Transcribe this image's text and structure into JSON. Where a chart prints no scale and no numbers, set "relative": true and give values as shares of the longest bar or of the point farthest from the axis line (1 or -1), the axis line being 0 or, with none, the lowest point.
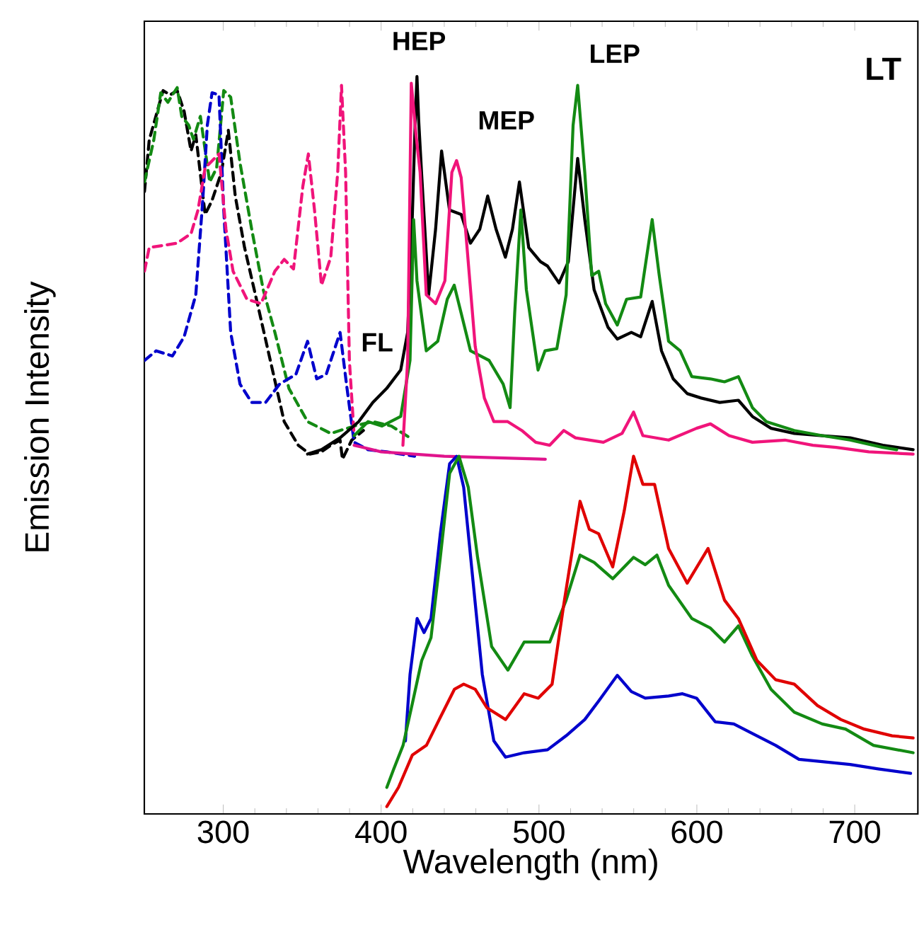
{
  "chart_data": {
    "type": "line",
    "relative": true,
    "xlabel": "Wavelength (nm)",
    "ylabel": "Emission Intensity",
    "xlim": [
      250,
      740
    ],
    "xticks": [
      300,
      400,
      500,
      600,
      700
    ],
    "grid": false,
    "marker": "none",
    "annotations": [
      "HEP",
      "MEP",
      "LEP",
      "FL",
      "LT"
    ],
    "series": [
      {
        "color": "#000000",
        "line_style": "dashed",
        "x": [
          250.1,
          253.1,
          259.0,
          261.9,
          266.3,
          270.8,
          275.2,
          279.6,
          282.6,
          288.5,
          292.9,
          298.8,
          303.2,
          307.6,
          313.5,
          322.4,
          329.8,
          338.6,
          347.5,
          354.8,
          362.2,
          368.1,
          374.0,
          375.5,
          381.4,
          388.8
        ],
        "values": [
          0.844,
          0.914,
          0.959,
          0.981,
          0.975,
          0.981,
          0.953,
          0.899,
          0.921,
          0.813,
          0.832,
          0.87,
          0.927,
          0.838,
          0.768,
          0.685,
          0.615,
          0.532,
          0.5,
          0.488,
          0.491,
          0.5,
          0.507,
          0.481,
          0.507,
          0.52
        ]
      },
      {
        "color": "#138a13",
        "line_style": "dashed",
        "x": [
          250.1,
          256.0,
          260.4,
          264.9,
          270.8,
          273.7,
          278.1,
          281.1,
          285.5,
          291.4,
          295.8,
          300.3,
          304.7,
          310.6,
          318.0,
          325.3,
          332.7,
          341.6,
          353.4,
          368.1,
          382.9,
          394.7,
          406.5,
          418.3
        ],
        "values": [
          0.857,
          0.914,
          0.978,
          0.965,
          0.985,
          0.946,
          0.934,
          0.915,
          0.946,
          0.857,
          0.876,
          0.981,
          0.972,
          0.883,
          0.793,
          0.711,
          0.653,
          0.577,
          0.532,
          0.516,
          0.526,
          0.532,
          0.526,
          0.51
        ]
      },
      {
        "color": "#0000cc",
        "line_style": "dashed",
        "x": [
          250.1,
          257.5,
          267.8,
          275.2,
          282.6,
          287.0,
          289.9,
          292.9,
          297.3,
          300.3,
          304.7,
          310.6,
          318.0,
          326.8,
          335.7,
          346.0,
          353.4,
          359.2,
          365.2,
          374.0,
          378.4,
          382.9,
          391.7,
          403.5,
          421.2
        ],
        "values": [
          0.615,
          0.628,
          0.621,
          0.647,
          0.704,
          0.832,
          0.934,
          0.978,
          0.975,
          0.819,
          0.653,
          0.583,
          0.558,
          0.558,
          0.583,
          0.596,
          0.641,
          0.59,
          0.596,
          0.653,
          0.577,
          0.504,
          0.494,
          0.491,
          0.485
        ]
      },
      {
        "color": "#f0147a",
        "line_style": "dashed",
        "x": [
          250.1,
          253.1,
          261.9,
          270.8,
          279.6,
          284.0,
          288.5,
          294.4,
          297.3,
          301.7,
          306.2,
          315.0,
          323.9,
          332.7,
          338.6,
          344.5,
          350.4,
          353.9,
          357.8,
          362.2,
          368.1,
          372.5,
          374.9,
          377.5,
          379.9,
          382.9
        ],
        "values": [
          0.736,
          0.768,
          0.771,
          0.774,
          0.787,
          0.819,
          0.876,
          0.889,
          0.895,
          0.793,
          0.736,
          0.698,
          0.692,
          0.736,
          0.752,
          0.739,
          0.851,
          0.895,
          0.819,
          0.717,
          0.755,
          0.87,
          0.988,
          0.87,
          0.615,
          0.513
        ]
      },
      {
        "color": "#e0148c",
        "line_style": "solid",
        "x": [
          382.9,
          400,
          440,
          504
        ],
        "values": [
          0.5,
          0.491,
          0.485,
          0.481
        ]
      },
      {
        "color": "#000000",
        "line_style": "solid",
        "x": [
          353.4,
          362.2,
          374.0,
          385.8,
          394.7,
          403.5,
          412.4,
          416.8,
          419.7,
          421.6,
          422.7,
          423.8,
          425.6,
          430.1,
          434.5,
          438.3,
          443.3,
          450.7,
          456.6,
          462.5,
          467.5,
          472.8,
          478.7,
          483.2,
          487.6,
          493.5,
          500.9,
          505.4,
          512.7,
          518.6,
          524.5,
          529.0,
          534.9,
          543.7,
          549.6,
          558.5,
          564.4,
          571.7,
          577.6,
          585.0,
          593.9,
          602.7,
          614.5,
          626.3,
          635.2,
          647.0,
          661.7,
          679.6,
          697.1,
          717.8,
          737.0
        ],
        "values": [
          0.488,
          0.494,
          0.51,
          0.532,
          0.558,
          0.577,
          0.602,
          0.653,
          0.806,
          0.94,
          1.0,
          0.94,
          0.87,
          0.704,
          0.793,
          0.899,
          0.819,
          0.813,
          0.774,
          0.793,
          0.838,
          0.793,
          0.755,
          0.793,
          0.857,
          0.768,
          0.749,
          0.743,
          0.72,
          0.749,
          0.889,
          0.806,
          0.711,
          0.66,
          0.644,
          0.653,
          0.647,
          0.695,
          0.628,
          0.59,
          0.57,
          0.564,
          0.558,
          0.561,
          0.539,
          0.523,
          0.516,
          0.513,
          0.51,
          0.5,
          0.494
        ]
      },
      {
        "color": "#138a13",
        "line_style": "solid",
        "x": [
          382.9,
          391.7,
          400.6,
          412.4,
          418.3,
          420.6,
          422.7,
          428.6,
          435.9,
          441.9,
          446.3,
          450.7,
          456.6,
          468.4,
          477.3,
          481.7,
          484.6,
          488.5,
          492.0,
          499.4,
          503.8,
          511.3,
          517.2,
          521.6,
          524.5,
          529.0,
          533.4,
          537.8,
          542.2,
          549.6,
          555.5,
          564.4,
          571.7,
          576.2,
          582.1,
          589.4,
          596.8,
          608.6,
          617.5,
          626.3,
          635.2,
          644.0,
          661.7,
          679.4,
          697.1,
          717.8,
          726.6
        ],
        "values": [
          0.513,
          0.532,
          0.526,
          0.539,
          0.615,
          0.806,
          0.723,
          0.628,
          0.641,
          0.698,
          0.717,
          0.679,
          0.628,
          0.615,
          0.583,
          0.551,
          0.679,
          0.819,
          0.711,
          0.602,
          0.628,
          0.631,
          0.704,
          0.934,
          0.988,
          0.87,
          0.73,
          0.736,
          0.692,
          0.663,
          0.698,
          0.701,
          0.806,
          0.73,
          0.641,
          0.628,
          0.593,
          0.59,
          0.586,
          0.593,
          0.551,
          0.532,
          0.52,
          0.513,
          0.507,
          0.497,
          0.494
        ]
      },
      {
        "color": "#f0147a",
        "line_style": "solid",
        "x": [
          413.8,
          416.8,
          419.1,
          422.1,
          424.7,
          428.6,
          434.5,
          440.4,
          444.8,
          447.8,
          450.7,
          454.2,
          459.6,
          465.4,
          471.4,
          480.2,
          489.1,
          497.9,
          506.8,
          515.7,
          523.1,
          540.8,
          552.6,
          559.9,
          565.8,
          582.1,
          599.8,
          608.6,
          620.4,
          635.2,
          655.8,
          673.5,
          688.3,
          708.9,
          737.0
        ],
        "values": [
          0.5,
          0.615,
          0.991,
          0.921,
          0.87,
          0.704,
          0.692,
          0.723,
          0.87,
          0.886,
          0.863,
          0.774,
          0.634,
          0.564,
          0.532,
          0.532,
          0.52,
          0.504,
          0.5,
          0.52,
          0.51,
          0.504,
          0.516,
          0.545,
          0.513,
          0.507,
          0.523,
          0.529,
          0.513,
          0.504,
          0.507,
          0.5,
          0.497,
          0.491,
          0.488
        ]
      },
      {
        "color": "#0000cc",
        "line_style": "solid",
        "x": [
          415.4,
          418.3,
          422.8,
          427.2,
          431.6,
          437.5,
          443.4,
          447.8,
          452.3,
          458.2,
          464.1,
          471.4,
          478.8,
          490.6,
          505.4,
          517.2,
          529.0,
          537.8,
          549.6,
          558.5,
          567.3,
          582.1,
          590.9,
          599.8,
          611.6,
          623.4,
          635.2,
          649.9,
          664.7,
          679.4,
          697.1,
          714.8,
          735.4
        ],
        "values": [
          0.099,
          0.189,
          0.265,
          0.246,
          0.265,
          0.38,
          0.475,
          0.485,
          0.443,
          0.316,
          0.189,
          0.099,
          0.077,
          0.083,
          0.087,
          0.106,
          0.128,
          0.153,
          0.188,
          0.166,
          0.157,
          0.16,
          0.163,
          0.157,
          0.125,
          0.122,
          0.109,
          0.093,
          0.074,
          0.071,
          0.067,
          0.061,
          0.055
        ]
      },
      {
        "color": "#138a13",
        "line_style": "solid",
        "x": [
          403.6,
          408.0,
          413.9,
          419.8,
          425.7,
          431.6,
          437.5,
          443.4,
          449.3,
          455.2,
          461.1,
          470.0,
          480.3,
          490.6,
          506.8,
          517.2,
          526.0,
          534.9,
          546.7,
          559.9,
          567.3,
          574.7,
          582.1,
          596.8,
          608.6,
          617.5,
          626.3,
          635.2,
          647.0,
          661.7,
          679.4,
          694.2,
          711.9,
          737.0
        ],
        "values": [
          0.036,
          0.061,
          0.093,
          0.15,
          0.208,
          0.239,
          0.348,
          0.462,
          0.485,
          0.443,
          0.348,
          0.227,
          0.195,
          0.233,
          0.233,
          0.29,
          0.351,
          0.341,
          0.319,
          0.348,
          0.338,
          0.351,
          0.31,
          0.265,
          0.252,
          0.233,
          0.255,
          0.214,
          0.169,
          0.138,
          0.122,
          0.115,
          0.093,
          0.083
        ]
      },
      {
        "color": "#e00000",
        "line_style": "solid",
        "x": [
          403.6,
          411.0,
          419.8,
          428.7,
          437.5,
          446.4,
          452.3,
          459.6,
          467.0,
          478.8,
          490.6,
          499.5,
          508.3,
          515.7,
          526.0,
          531.9,
          537.8,
          546.7,
          554.0,
          559.9,
          565.8,
          573.2,
          582.1,
          593.9,
          607.1,
          617.5,
          626.3,
          638.1,
          649.9,
          661.7,
          676.4,
          691.2,
          706.0,
          723.7,
          737.0
        ],
        "values": [
          0.01,
          0.036,
          0.08,
          0.093,
          0.131,
          0.169,
          0.176,
          0.169,
          0.144,
          0.128,
          0.163,
          0.157,
          0.176,
          0.284,
          0.424,
          0.386,
          0.38,
          0.335,
          0.411,
          0.485,
          0.447,
          0.447,
          0.36,
          0.313,
          0.36,
          0.29,
          0.265,
          0.208,
          0.182,
          0.176,
          0.147,
          0.128,
          0.115,
          0.106,
          0.103
        ]
      }
    ]
  }
}
